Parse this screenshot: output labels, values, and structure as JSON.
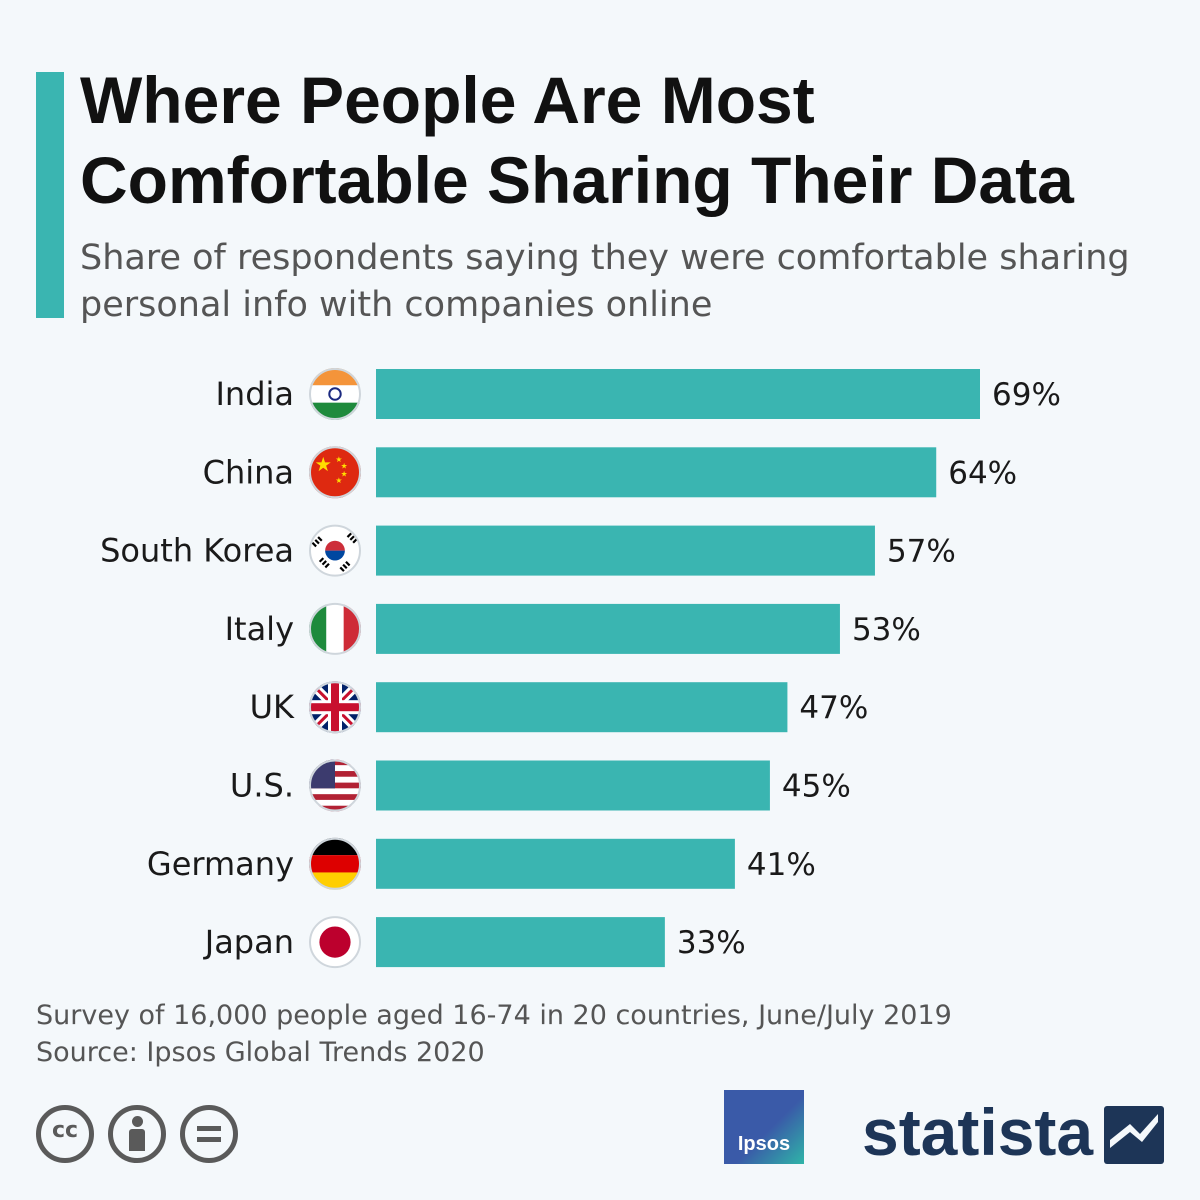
{
  "title": "Where People Are Most Comfortable Sharing Their Data",
  "subtitle": "Share of respondents saying they were comfortable sharing personal info with companies online",
  "colors": {
    "accent": "#3ab5b1",
    "bar": "#3ab5b1",
    "text": "#1a1a1a",
    "brand": "#1d3557"
  },
  "chart_data": {
    "type": "bar",
    "orientation": "horizontal",
    "categories": [
      "India",
      "China",
      "South Korea",
      "Italy",
      "UK",
      "U.S.",
      "Germany",
      "Japan"
    ],
    "values": [
      69,
      64,
      57,
      53,
      47,
      45,
      41,
      33
    ],
    "value_labels": [
      "69%",
      "64%",
      "57%",
      "53%",
      "47%",
      "45%",
      "41%",
      "33%"
    ],
    "unit": "%",
    "xlim": [
      0,
      69
    ],
    "grid": false,
    "legend": "none",
    "flags": [
      "india-flag-icon",
      "china-flag-icon",
      "south-korea-flag-icon",
      "italy-flag-icon",
      "uk-flag-icon",
      "us-flag-icon",
      "germany-flag-icon",
      "japan-flag-icon"
    ]
  },
  "footer": {
    "note": "Survey of 16,000 people aged 16-74 in 20 countries, June/July 2019",
    "source": "Source: Ipsos Global Trends 2020",
    "cc_text": "cc",
    "ipsos": "Ipsos",
    "statista": "statista"
  }
}
